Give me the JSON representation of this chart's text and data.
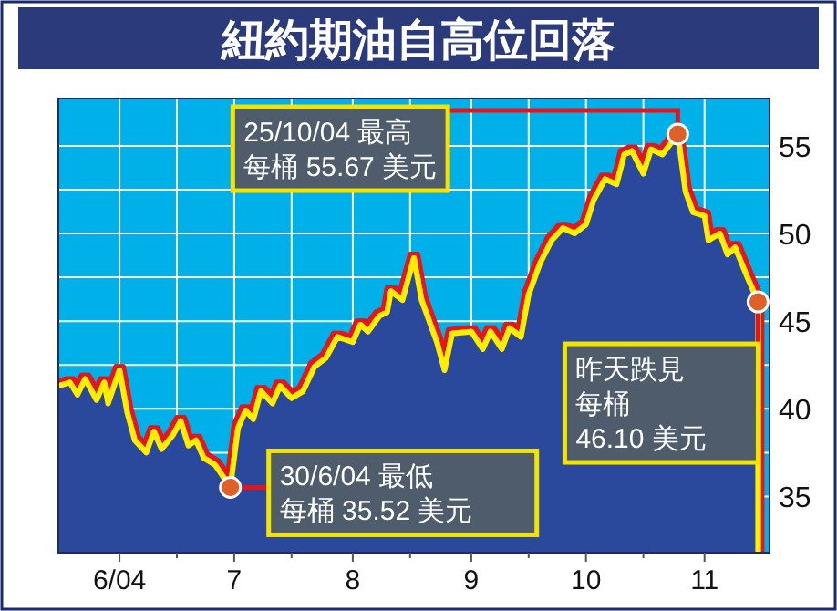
{
  "chart_data": {
    "type": "area",
    "title": "紐約期油自高位回落",
    "x": [
      "2004-05-16",
      "2004-05-19",
      "2004-05-21",
      "2004-05-23",
      "2004-05-26",
      "2004-05-28",
      "2004-05-29",
      "2004-06-01",
      "2004-06-03",
      "2004-06-05",
      "2004-06-08",
      "2004-06-10",
      "2004-06-12",
      "2004-06-15",
      "2004-06-17",
      "2004-06-19",
      "2004-06-21",
      "2004-06-23",
      "2004-06-26",
      "2004-06-30",
      "2004-07-02",
      "2004-07-04",
      "2004-07-06",
      "2004-07-08",
      "2004-07-11",
      "2004-07-13",
      "2004-07-16",
      "2004-07-19",
      "2004-07-22",
      "2004-07-25",
      "2004-07-28",
      "2004-08-01",
      "2004-08-03",
      "2004-08-05",
      "2004-08-08",
      "2004-08-10",
      "2004-08-11",
      "2004-08-14",
      "2004-08-17",
      "2004-08-19",
      "2004-08-23",
      "2004-08-25",
      "2004-08-27",
      "2004-09-01",
      "2004-09-04",
      "2004-09-06",
      "2004-09-09",
      "2004-09-11",
      "2004-09-14",
      "2004-09-16",
      "2004-09-19",
      "2004-09-22",
      "2004-09-25",
      "2004-09-28",
      "2004-10-01",
      "2004-10-03",
      "2004-10-06",
      "2004-10-09",
      "2004-10-11",
      "2004-10-13",
      "2004-10-16",
      "2004-10-18",
      "2004-10-21",
      "2004-10-25",
      "2004-10-27",
      "2004-10-29",
      "2004-11-01",
      "2004-11-02",
      "2004-11-05",
      "2004-11-07",
      "2004-11-09",
      "2004-11-12",
      "2004-11-15"
    ],
    "series": [
      {
        "color": "#2a4a9c",
        "values": [
          41.3,
          41.5,
          40.8,
          41.7,
          40.5,
          41.5,
          40.3,
          42.2,
          39.8,
          38.2,
          37.5,
          38.7,
          37.7,
          38.5,
          39.3,
          37.9,
          38.2,
          37.2,
          36.8,
          35.52,
          38.9,
          39.9,
          39.4,
          41.0,
          40.3,
          41.3,
          40.6,
          41.0,
          42.4,
          42.9,
          44.1,
          43.8,
          44.8,
          44.4,
          45.3,
          45.5,
          46.7,
          46.2,
          48.6,
          46.2,
          43.8,
          42.2,
          44.3,
          44.4,
          43.4,
          44.4,
          43.4,
          44.6,
          44.1,
          46.5,
          48.3,
          49.6,
          50.3,
          50.0,
          50.5,
          51.9,
          53.1,
          52.8,
          54.5,
          54.7,
          53.4,
          54.8,
          54.5,
          55.67,
          52.4,
          51.2,
          51.0,
          49.6,
          50.0,
          48.8,
          49.2,
          47.6,
          46.1
        ]
      }
    ],
    "xlim": [
      "2004-05-16",
      "2004-11-18"
    ],
    "xticks": [
      {
        "value": "2004-06-01",
        "label": "6/04"
      },
      {
        "value": "2004-06-16",
        "label": null
      },
      {
        "value": "2004-07-01",
        "label": "7"
      },
      {
        "value": "2004-07-16",
        "label": null
      },
      {
        "value": "2004-08-01",
        "label": "8"
      },
      {
        "value": "2004-08-16",
        "label": null
      },
      {
        "value": "2004-09-01",
        "label": "9"
      },
      {
        "value": "2004-09-16",
        "label": null
      },
      {
        "value": "2004-10-01",
        "label": "10"
      },
      {
        "value": "2004-10-16",
        "label": null
      },
      {
        "value": "2004-11-01",
        "label": "11"
      }
    ],
    "ylim": [
      31.8,
      57.7
    ],
    "yticks": [
      35,
      {
        "value": 37.5,
        "label": null
      },
      40,
      {
        "value": 42.5,
        "label": null
      },
      45,
      {
        "value": 47.5,
        "label": null
      },
      50,
      {
        "value": 52.5,
        "label": null
      },
      55
    ],
    "grid": true,
    "marker": "none",
    "annotations": [
      {
        "text": "25/10/04 最高每桶 55.67 美元",
        "x": "2004-10-25",
        "y": 55.67
      },
      {
        "text": "30/6/04 最低每桶 35.52 美元",
        "x": "2004-06-30",
        "y": 35.52
      },
      {
        "text": "昨天跌見每桶46.10 美元",
        "x": "2004-11-15",
        "y": 46.1
      }
    ]
  }
}
